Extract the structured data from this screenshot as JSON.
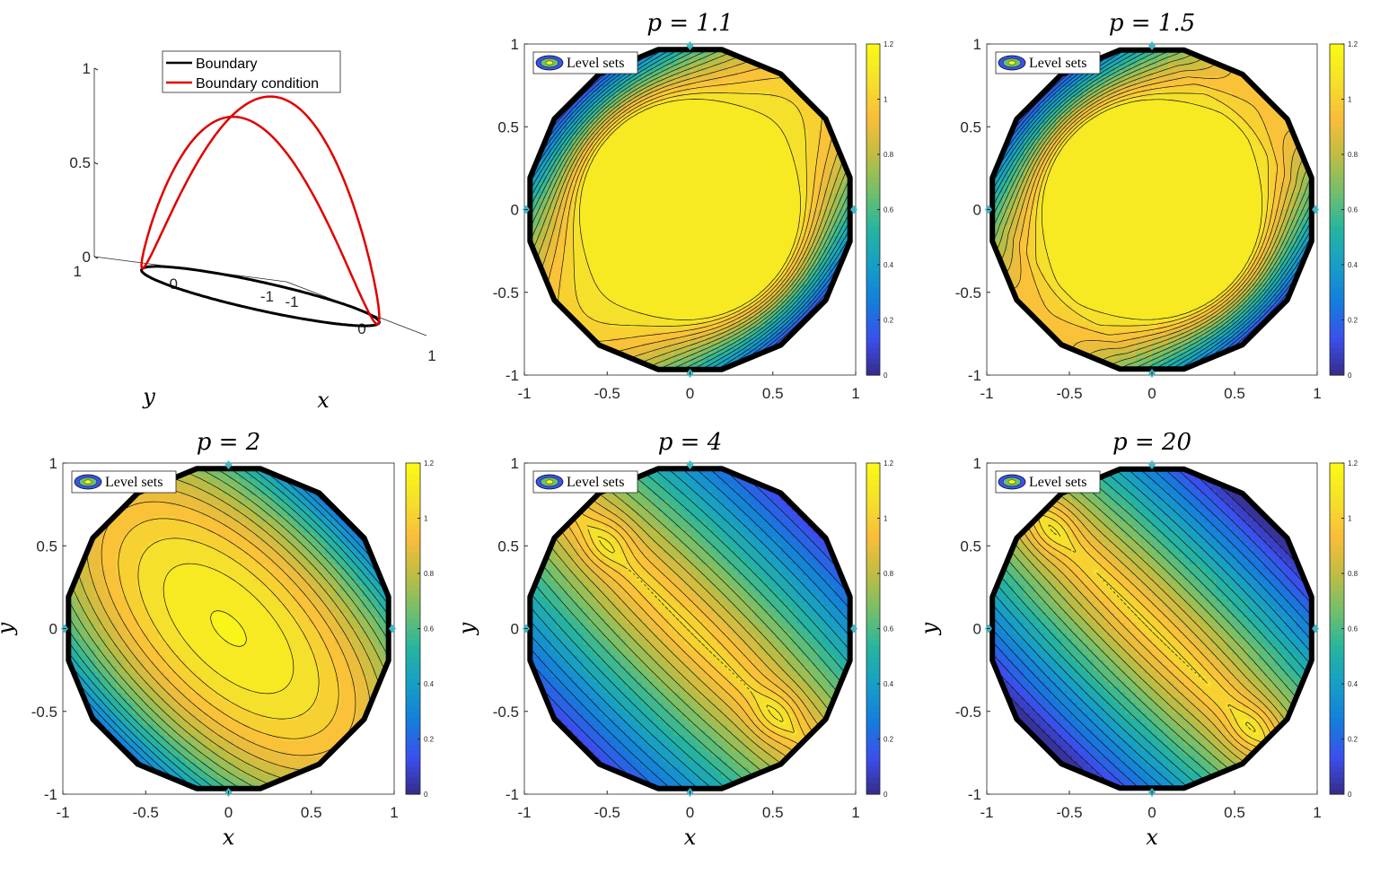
{
  "chart_data": [
    {
      "type": "line3d",
      "title": "",
      "xlabel": "x",
      "ylabel": "y",
      "xlim": [
        -1,
        1
      ],
      "ylim": [
        -1,
        1
      ],
      "zlim": [
        0,
        1
      ],
      "x_ticks": [
        "-1",
        "0",
        "1"
      ],
      "y_ticks": [
        "-1",
        "0",
        "1"
      ],
      "z_ticks": [
        "0",
        "0.5",
        "1"
      ],
      "legend": [
        "Boundary",
        "Boundary condition"
      ],
      "legend_position": "top",
      "series": [
        {
          "name": "Boundary",
          "color": "#000000",
          "curve": "unit circle at z = 0"
        },
        {
          "name": "Boundary condition",
          "color": "#e00000",
          "curve": "z = (1 + sin(2t))/2 on unit circle (x = cos t, y = sin t)"
        }
      ]
    },
    {
      "type": "contour",
      "title": "p = 1.1",
      "p": 1.1,
      "xlim": [
        -1,
        1
      ],
      "ylim": [
        -1,
        1
      ],
      "x_ticks": [
        "-1",
        "-0.5",
        "0",
        "0.5",
        "1"
      ],
      "y_ticks": [
        "-1",
        "-0.5",
        "0",
        "0.5",
        "1"
      ],
      "colorbar_range": [
        0,
        1.2
      ],
      "colorbar_ticks": [
        "0",
        "0.2",
        "0.4",
        "0.6",
        "0.8",
        "1",
        "1.2"
      ],
      "legend": [
        "Level sets"
      ],
      "legend_position": "top-left",
      "plateau_value": 1.12
    },
    {
      "type": "contour",
      "title": "p = 1.5",
      "p": 1.5,
      "xlim": [
        -1,
        1
      ],
      "ylim": [
        -1,
        1
      ],
      "x_ticks": [
        "-1",
        "-0.5",
        "0",
        "0.5",
        "1"
      ],
      "y_ticks": [
        "-1",
        "-0.5",
        "0",
        "0.5",
        "1"
      ],
      "colorbar_range": [
        0,
        1.2
      ],
      "colorbar_ticks": [
        "0",
        "0.2",
        "0.4",
        "0.6",
        "0.8",
        "1",
        "1.2"
      ],
      "legend": [
        "Level sets"
      ],
      "legend_position": "top-left",
      "plateau_value": 1.12
    },
    {
      "type": "contour",
      "title": "p = 2",
      "p": 2,
      "xlabel": "x",
      "ylabel": "y",
      "xlim": [
        -1,
        1
      ],
      "ylim": [
        -1,
        1
      ],
      "x_ticks": [
        "-1",
        "-0.5",
        "0",
        "0.5",
        "1"
      ],
      "y_ticks": [
        "-1",
        "-0.5",
        "0",
        "0.5",
        "1"
      ],
      "colorbar_range": [
        0,
        1.2
      ],
      "colorbar_ticks": [
        "0",
        "0.2",
        "0.4",
        "0.6",
        "0.8",
        "1",
        "1.2"
      ],
      "legend": [
        "Level sets"
      ],
      "legend_position": "top-left",
      "max_value": 1.15
    },
    {
      "type": "contour",
      "title": "p = 4",
      "p": 4,
      "xlabel": "x",
      "ylabel": "y",
      "xlim": [
        -1,
        1
      ],
      "ylim": [
        -1,
        1
      ],
      "x_ticks": [
        "-1",
        "-0.5",
        "0",
        "0.5",
        "1"
      ],
      "y_ticks": [
        "-1",
        "-0.5",
        "0",
        "0.5",
        "1"
      ],
      "colorbar_range": [
        0,
        1.2
      ],
      "colorbar_ticks": [
        "0",
        "0.2",
        "0.4",
        "0.6",
        "0.8",
        "1",
        "1.2"
      ],
      "legend": [
        "Level sets"
      ],
      "legend_position": "top-left",
      "local_maxima": [
        [
          -0.5,
          0.52
        ],
        [
          0.52,
          -0.52
        ]
      ]
    },
    {
      "type": "contour",
      "title": "p = 20",
      "p": 20,
      "xlabel": "x",
      "ylabel": "y",
      "xlim": [
        -1,
        1
      ],
      "ylim": [
        -1,
        1
      ],
      "x_ticks": [
        "-1",
        "-0.5",
        "0",
        "0.5",
        "1"
      ],
      "y_ticks": [
        "-1",
        "-0.5",
        "0",
        "0.5",
        "1"
      ],
      "colorbar_range": [
        0,
        1.2
      ],
      "colorbar_ticks": [
        "0",
        "0.2",
        "0.4",
        "0.6",
        "0.8",
        "1",
        "1.2"
      ],
      "legend": [
        "Level sets"
      ],
      "legend_position": "top-left",
      "local_maxima": [
        [
          -0.6,
          0.6
        ],
        [
          0.6,
          -0.6
        ]
      ]
    }
  ],
  "colors": {
    "boundary": "#000000",
    "boundary_condition": "#e00000",
    "colormap": "parula",
    "diamond_markers": "#3fb8c8"
  }
}
